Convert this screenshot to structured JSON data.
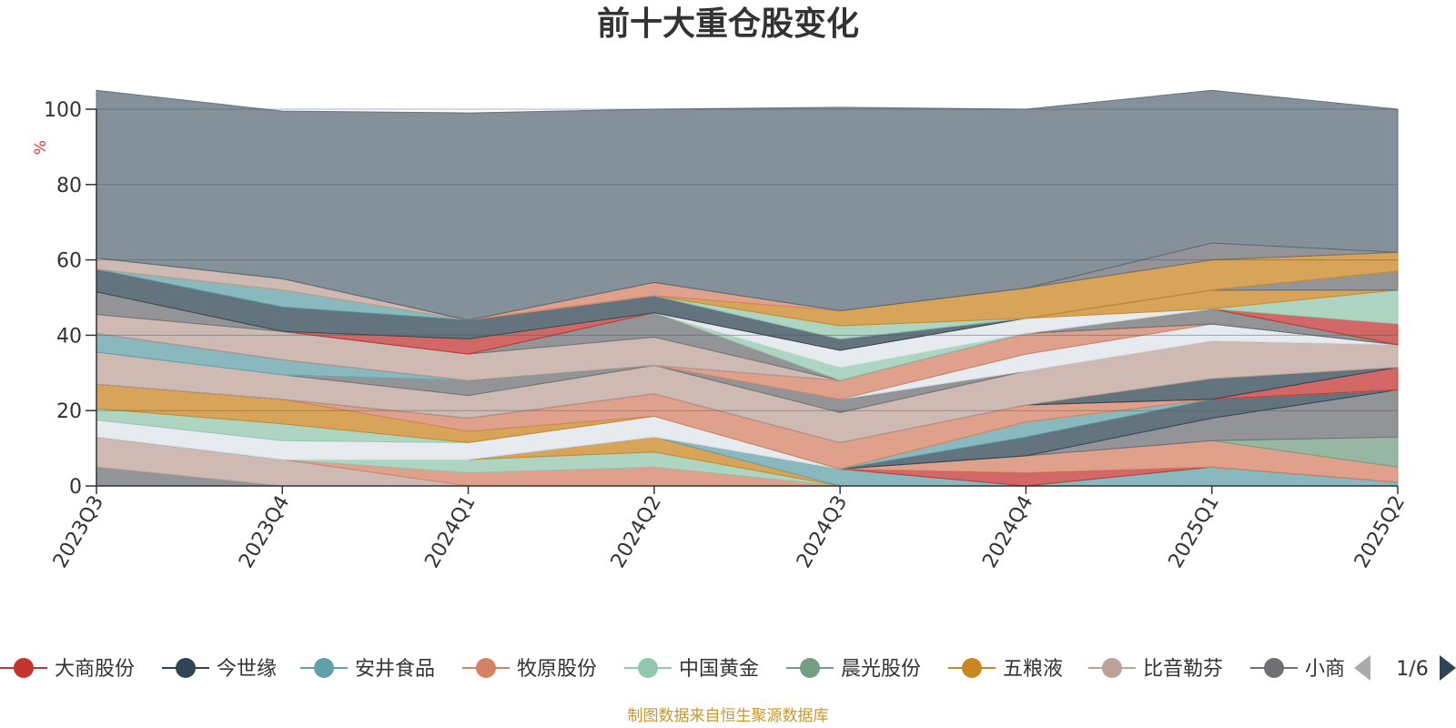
{
  "source_note": "制图数据来自恒生聚源数据库",
  "legend": {
    "page": "1/6",
    "prev_icon": "triangle-left-icon",
    "next_icon": "triangle-right-icon",
    "marker_icon": "circle-line-icon"
  },
  "chart_data": {
    "type": "area",
    "stacked": true,
    "title": "前十大重仓股变化",
    "ylabel": "%",
    "ylabel_color": "#e53935",
    "ylim": [
      0,
      100
    ],
    "yticks": [
      0,
      20,
      40,
      60,
      80,
      100
    ],
    "grid": true,
    "legend_position": "bottom",
    "categories": [
      "2023Q3",
      "2023Q4",
      "2024Q1",
      "2024Q2",
      "2024Q3",
      "2024Q4",
      "2025Q1",
      "2025Q2"
    ],
    "legend_items": [
      {
        "label": "大商股份",
        "color": "#c23531"
      },
      {
        "label": "今世缘",
        "color": "#2f4554"
      },
      {
        "label": "安井食品",
        "color": "#61a0a8"
      },
      {
        "label": "牧原股份",
        "color": "#d48265"
      },
      {
        "label": "中国黄金",
        "color": "#91c7ae"
      },
      {
        "label": "晨光股份",
        "color": "#749f83"
      },
      {
        "label": "五粮液",
        "color": "#ca8622"
      },
      {
        "label": "比音勒芬",
        "color": "#bda29a"
      },
      {
        "label": "小商品城",
        "color": "#6e7074"
      }
    ],
    "series": [
      {
        "color": "#6e7074",
        "values": [
          5,
          0,
          0,
          0,
          0,
          0,
          0,
          0
        ]
      },
      {
        "color": "#bda29a",
        "values": [
          8,
          7,
          0,
          0,
          0,
          0,
          0,
          0
        ]
      },
      {
        "color": "#d48265",
        "values": [
          0,
          0,
          3.5,
          5,
          0,
          0,
          0,
          0
        ]
      },
      {
        "color": "#91c7ae",
        "values": [
          0,
          0,
          3.5,
          4,
          0,
          0,
          0,
          0
        ]
      },
      {
        "color": "#ca8622",
        "values": [
          0,
          0,
          0,
          4,
          0,
          0,
          0,
          0
        ]
      },
      {
        "color": "#61a0a8",
        "values": [
          0,
          0,
          0,
          0,
          4.5,
          0,
          5,
          1
        ]
      },
      {
        "color": "#c23531",
        "values": [
          0,
          0,
          0,
          0,
          0,
          3.5,
          0,
          0
        ]
      },
      {
        "color": "#d48265",
        "values": [
          0,
          0,
          0,
          0,
          0,
          4.5,
          7,
          4
        ]
      },
      {
        "color": "#749f83",
        "values": [
          0,
          0,
          0,
          0,
          0,
          0,
          0,
          8
        ]
      },
      {
        "color": "#6e7074",
        "values": [
          0,
          0,
          0,
          0,
          0,
          0,
          6,
          12.5
        ]
      },
      {
        "color": "#2f4554",
        "values": [
          0,
          0,
          0,
          0,
          0,
          5,
          5,
          0
        ]
      },
      {
        "color": "#61a0a8",
        "values": [
          0,
          0,
          0,
          0,
          0,
          4,
          0,
          0
        ]
      },
      {
        "color": "#dfe3ea",
        "values": [
          4.5,
          5,
          4.5,
          5.5,
          0,
          0,
          0,
          0
        ]
      },
      {
        "color": "#91c7ae",
        "values": [
          3,
          4.5,
          0,
          0,
          0,
          0,
          0,
          0
        ]
      },
      {
        "color": "#ca8622",
        "values": [
          6.5,
          6.5,
          3,
          0,
          0,
          0,
          0,
          0
        ]
      },
      {
        "color": "#d48265",
        "values": [
          0,
          0,
          3.5,
          6,
          7,
          4.5,
          0,
          0
        ]
      },
      {
        "color": "#c23531",
        "values": [
          0,
          0,
          0,
          0,
          0,
          0,
          0,
          6
        ]
      },
      {
        "color": "#2f4554",
        "values": [
          0,
          0,
          0,
          0,
          0,
          0,
          5.5,
          0
        ]
      },
      {
        "color": "#bda29a",
        "values": [
          8.5,
          6.5,
          6,
          7.5,
          8,
          9,
          10,
          6
        ]
      },
      {
        "color": "#6e7074",
        "values": [
          0,
          0,
          4,
          0,
          3.5,
          0,
          0,
          0
        ]
      },
      {
        "color": "#dfe3ea",
        "values": [
          0,
          0,
          0,
          0,
          0,
          4.5,
          4.5,
          0
        ]
      },
      {
        "color": "#61a0a8",
        "values": [
          5,
          4,
          0,
          0,
          0,
          0,
          0,
          0
        ]
      },
      {
        "color": "#d48265",
        "values": [
          0,
          0,
          0,
          0,
          5,
          5.5,
          0,
          0
        ]
      },
      {
        "color": "#2f4554",
        "values": [
          0,
          0,
          0,
          0,
          0,
          0,
          0,
          0
        ]
      },
      {
        "color": "#bda29a",
        "values": [
          5,
          7.5,
          7,
          7.5,
          0,
          0,
          0,
          0
        ]
      },
      {
        "color": "#6e7074",
        "values": [
          6,
          0,
          0,
          6.5,
          0,
          0,
          4,
          0
        ]
      },
      {
        "color": "#c23531",
        "values": [
          0,
          0,
          4,
          0,
          0,
          0,
          0,
          5.5
        ]
      },
      {
        "color": "#91c7ae",
        "values": [
          0,
          0,
          0,
          0,
          3.5,
          0,
          0,
          9
        ]
      },
      {
        "color": "#dfe3ea",
        "values": [
          0,
          0,
          0,
          0,
          4.5,
          4,
          0,
          0
        ]
      },
      {
        "color": "#ca8622",
        "values": [
          0,
          0,
          0,
          0,
          0,
          0,
          5,
          0
        ]
      },
      {
        "color": "#2f4554",
        "values": [
          6,
          6.5,
          5,
          4.5,
          3,
          0,
          0,
          0
        ]
      },
      {
        "color": "#61a0a8",
        "values": [
          0,
          4.5,
          0,
          0,
          0,
          0,
          0,
          0
        ]
      },
      {
        "color": "#6e7074",
        "values": [
          0,
          0,
          0,
          0,
          0,
          0,
          0,
          5
        ]
      },
      {
        "color": "#91c7ae",
        "values": [
          0,
          0,
          0,
          0,
          3.5,
          0,
          0,
          0
        ]
      },
      {
        "color": "#ca8622",
        "values": [
          0,
          0,
          0,
          0,
          4,
          8,
          8,
          5
        ]
      },
      {
        "color": "#bda29a",
        "values": [
          3,
          3,
          0,
          0,
          0,
          0,
          0,
          0
        ]
      },
      {
        "color": "#d48265",
        "values": [
          0,
          0,
          0,
          3.5,
          0,
          0,
          0,
          0
        ]
      },
      {
        "color": "#6e7074",
        "values": [
          0,
          0,
          0,
          0,
          0,
          0,
          4.5,
          0
        ]
      },
      {
        "color": "#5b6c78",
        "values": [
          44.5,
          44.5,
          55,
          46,
          54,
          47.5,
          40.5,
          38
        ]
      }
    ]
  }
}
